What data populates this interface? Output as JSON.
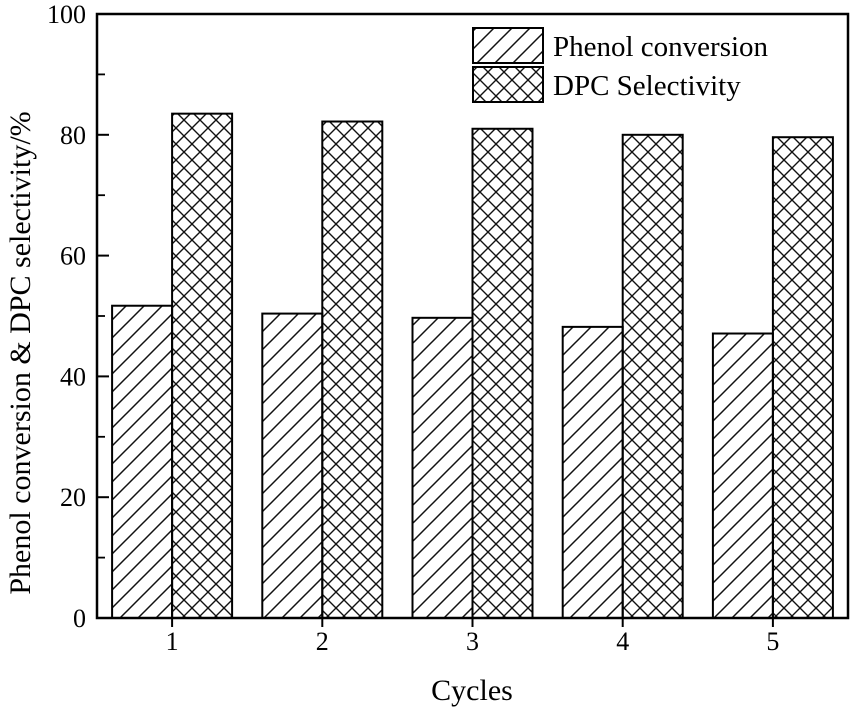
{
  "figure": {
    "background": "#ffffff",
    "frame_color": "#000000"
  },
  "legend": {
    "position": "top-right",
    "items": [
      {
        "label": "Phenol conversion",
        "pattern": "diagonal-hatch"
      },
      {
        "label": "DPC Selectivity",
        "pattern": "crosshatch"
      }
    ]
  },
  "chart_data": {
    "type": "bar",
    "categories": [
      "1",
      "2",
      "3",
      "4",
      "5"
    ],
    "series": [
      {
        "name": "Phenol conversion",
        "pattern": "diagonal-hatch",
        "values": [
          51.7,
          50.4,
          49.7,
          48.2,
          47.1
        ]
      },
      {
        "name": "DPC Selectivity",
        "pattern": "crosshatch",
        "values": [
          83.5,
          82.2,
          81.0,
          80.0,
          79.6
        ]
      }
    ],
    "title": "",
    "xlabel": "Cycles",
    "ylabel": "Phenol conversion & DPC selectivity/%",
    "ylim": [
      0,
      100
    ],
    "y_major_ticks": [
      0,
      20,
      40,
      60,
      80,
      100
    ],
    "y_minor_ticks": [
      10,
      30,
      50,
      70,
      90
    ],
    "grid": false,
    "legend_position": "top-right",
    "bar_fill": "#ffffff",
    "bar_outline_color": "#000000",
    "hatch_color": "#111111",
    "background": "#ffffff"
  }
}
